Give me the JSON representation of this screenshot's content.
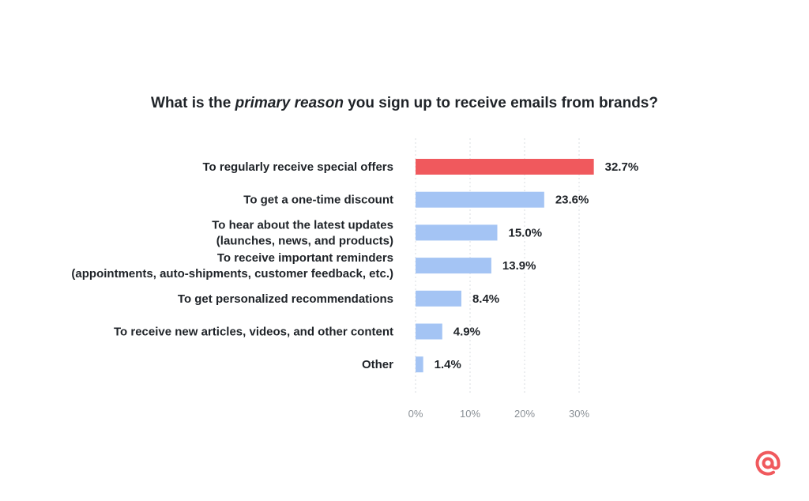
{
  "chart_data": {
    "type": "bar",
    "orientation": "horizontal",
    "title_parts": [
      "What is the ",
      "primary reason",
      " you sign up to receive emails from brands?"
    ],
    "categories": [
      [
        "To regularly receive special offers"
      ],
      [
        "To get a one-time discount"
      ],
      [
        "To hear about the latest updates",
        "(launches, news, and products)"
      ],
      [
        "To receive important reminders",
        "(appointments, auto-shipments, customer feedback, etc.)"
      ],
      [
        "To get personalized recommendations"
      ],
      [
        "To receive new articles, videos, and other content"
      ],
      [
        "Other"
      ]
    ],
    "values": [
      32.7,
      23.6,
      15.0,
      13.9,
      8.4,
      4.9,
      1.4
    ],
    "value_labels": [
      "32.7%",
      "23.6%",
      "15.0%",
      "13.9%",
      "8.4%",
      "4.9%",
      "1.4%"
    ],
    "xlim": [
      0,
      35
    ],
    "xticks": [
      0,
      10,
      20,
      30
    ],
    "xtick_labels": [
      "0%",
      "10%",
      "20%",
      "30%"
    ],
    "highlight_index": 0,
    "colors": {
      "highlight": "#f0595d",
      "default": "#a4c4f4",
      "grid": "#d9dde2"
    },
    "grid": true,
    "legend": "none"
  },
  "logo": {
    "icon": "at-sign-icon",
    "color": "#f0595d"
  }
}
